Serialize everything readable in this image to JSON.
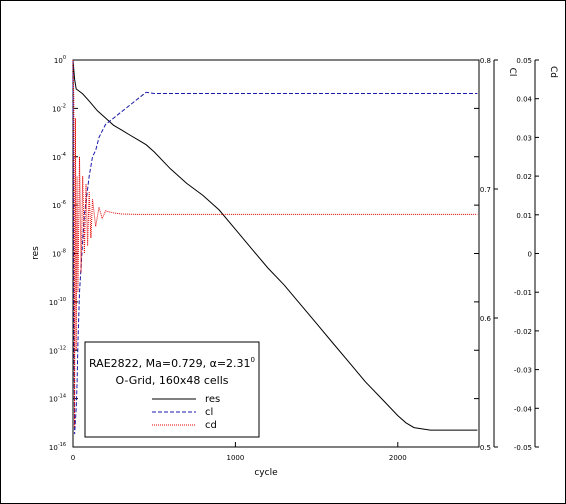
{
  "colors": {
    "res": "#000000",
    "cl": "#1a1aa8",
    "cd": "#e00000"
  },
  "chart_data": {
    "type": "line",
    "xlabel": "cycle",
    "ylabel": "res",
    "y2label": "Cl",
    "y3label": "Cd",
    "xlim": [
      0,
      2500
    ],
    "ylim_log": [
      1e-16,
      1
    ],
    "y2lim": [
      0.5,
      0.8
    ],
    "y3lim": [
      -0.05,
      0.05
    ],
    "x_ticks": [
      {
        "v": 0,
        "label": "0"
      },
      {
        "v": 1000,
        "label": "1000"
      },
      {
        "v": 2000,
        "label": "2000"
      }
    ],
    "y_ticks": [
      {
        "exp": 0,
        "base": "10",
        "sup": "0"
      },
      {
        "exp": -2,
        "base": "10",
        "sup": "-2"
      },
      {
        "exp": -4,
        "base": "10",
        "sup": "-4"
      },
      {
        "exp": -6,
        "base": "10",
        "sup": "-6"
      },
      {
        "exp": -8,
        "base": "10",
        "sup": "-8"
      },
      {
        "exp": -10,
        "base": "10",
        "sup": "-10"
      },
      {
        "exp": -12,
        "base": "10",
        "sup": "-12"
      },
      {
        "exp": -14,
        "base": "10",
        "sup": "-14"
      },
      {
        "exp": -16,
        "base": "10",
        "sup": "-16"
      }
    ],
    "y2_ticks": [
      {
        "v": 0.8,
        "label": "0.8"
      },
      {
        "v": 0.7,
        "label": "0.7"
      },
      {
        "v": 0.6,
        "label": "0.6"
      },
      {
        "v": 0.5,
        "label": "0.5"
      }
    ],
    "y3_ticks": [
      {
        "v": 0.05,
        "label": "0.05"
      },
      {
        "v": 0.04,
        "label": "0.04"
      },
      {
        "v": 0.03,
        "label": "0.03"
      },
      {
        "v": 0.02,
        "label": "0.02"
      },
      {
        "v": 0.01,
        "label": "0.01"
      },
      {
        "v": 0,
        "label": "0"
      },
      {
        "v": -0.01,
        "label": "-0.01"
      },
      {
        "v": -0.02,
        "label": "-0.02"
      },
      {
        "v": -0.03,
        "label": "-0.03"
      },
      {
        "v": -0.04,
        "label": "-0.04"
      },
      {
        "v": -0.05,
        "label": "-0.05"
      }
    ],
    "series": [
      {
        "name": "res",
        "axis": "y_log",
        "style": "solid",
        "x": [
          0,
          10,
          20,
          40,
          60,
          100,
          150,
          200,
          250,
          300,
          350,
          400,
          450,
          500,
          600,
          700,
          800,
          900,
          1000,
          1100,
          1200,
          1300,
          1400,
          1500,
          1600,
          1700,
          1800,
          1900,
          2000,
          2050,
          2100,
          2200,
          2300,
          2400,
          2490
        ],
        "y_exp": [
          0,
          -0.8,
          -1.2,
          -1.3,
          -1.4,
          -1.7,
          -2.1,
          -2.4,
          -2.7,
          -2.9,
          -3.1,
          -3.3,
          -3.5,
          -3.8,
          -4.5,
          -5.1,
          -5.6,
          -6.2,
          -7.0,
          -7.8,
          -8.6,
          -9.3,
          -10.1,
          -10.9,
          -11.7,
          -12.5,
          -13.3,
          -14.0,
          -14.7,
          -15.0,
          -15.2,
          -15.3,
          -15.3,
          -15.3,
          -15.3
        ]
      },
      {
        "name": "cl",
        "axis": "y2",
        "style": "dashed",
        "x": [
          0,
          5,
          10,
          15,
          20,
          25,
          30,
          35,
          40,
          50,
          60,
          70,
          80,
          90,
          100,
          120,
          140,
          160,
          180,
          200,
          250,
          300,
          350,
          400,
          450,
          500,
          1000,
          1500,
          2000,
          2490
        ],
        "y": [
          0.8,
          0.6,
          0.51,
          0.52,
          0.53,
          0.55,
          0.58,
          0.6,
          0.62,
          0.64,
          0.66,
          0.68,
          0.69,
          0.7,
          0.71,
          0.725,
          0.73,
          0.74,
          0.745,
          0.75,
          0.755,
          0.76,
          0.765,
          0.77,
          0.775,
          0.774,
          0.774,
          0.774,
          0.774,
          0.774
        ]
      },
      {
        "name": "cd",
        "axis": "y3",
        "style": "dotted",
        "x": [
          0,
          5,
          10,
          15,
          20,
          25,
          30,
          40,
          50,
          60,
          70,
          80,
          90,
          100,
          110,
          120,
          140,
          160,
          180,
          200,
          250,
          300,
          400,
          500,
          1000,
          1500,
          2000,
          2490
        ],
        "y": [
          0.05,
          0.04,
          -0.045,
          0.035,
          -0.025,
          0.02,
          -0.01,
          0.025,
          -0.005,
          0.02,
          0.0,
          0.018,
          0.002,
          0.016,
          0.004,
          0.014,
          0.007,
          0.012,
          0.009,
          0.011,
          0.0105,
          0.0102,
          0.0101,
          0.0101,
          0.0101,
          0.0101,
          0.0101,
          0.0101
        ]
      }
    ],
    "annotation": {
      "line1": "RAE2822, Ma=0.729, α=2.31",
      "line1_sup": "0",
      "line2": "O-Grid, 160x48 cells"
    },
    "legend": {
      "placement": "bottom-left",
      "items": [
        "res",
        "cl",
        "cd"
      ]
    }
  }
}
